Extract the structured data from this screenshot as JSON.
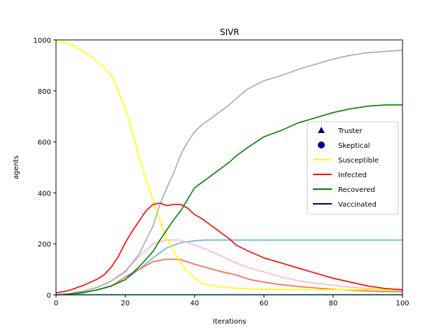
{
  "chart_data": {
    "type": "line",
    "title": "SIVR",
    "xlabel": "iterations",
    "ylabel": "agents",
    "xlim": [
      0,
      100
    ],
    "ylim": [
      0,
      1000
    ],
    "xticks": [
      0,
      20,
      40,
      60,
      80,
      100
    ],
    "yticks": [
      0,
      200,
      400,
      600,
      800,
      1000
    ],
    "grid": false,
    "legend_position": "center-right",
    "legend": [
      {
        "label": "Truster",
        "marker": "triangle",
        "color": "#000080"
      },
      {
        "label": "Skeptical",
        "marker": "circle",
        "color": "#000080"
      },
      {
        "label": "Susceptible",
        "marker": "line",
        "color": "#ffff00"
      },
      {
        "label": "Infected",
        "marker": "line",
        "color": "#ff0000"
      },
      {
        "label": "Recovered",
        "marker": "line",
        "color": "#008000"
      },
      {
        "label": "Vaccinated",
        "marker": "line",
        "color": "#000080"
      }
    ],
    "series": [
      {
        "name": "Susceptible",
        "color": "#ffff00",
        "x": [
          0,
          2,
          4,
          6,
          8,
          10,
          12,
          14,
          16,
          18,
          20,
          22,
          24,
          26,
          28,
          30,
          32,
          34,
          36,
          38,
          40,
          42,
          44,
          46,
          48,
          50,
          55,
          60,
          65,
          70,
          75,
          80,
          85,
          90,
          95,
          100
        ],
        "y": [
          995,
          990,
          985,
          970,
          955,
          935,
          915,
          890,
          860,
          800,
          730,
          640,
          540,
          450,
          370,
          290,
          220,
          170,
          125,
          90,
          65,
          45,
          40,
          35,
          30,
          28,
          24,
          22,
          21,
          20,
          20,
          20,
          20,
          20,
          20,
          20
        ]
      },
      {
        "name": "Infected",
        "color": "#ff0000",
        "x": [
          0,
          2,
          4,
          6,
          8,
          10,
          12,
          14,
          16,
          18,
          20,
          22,
          24,
          26,
          28,
          30,
          32,
          34,
          36,
          38,
          40,
          42,
          44,
          46,
          48,
          50,
          52,
          55,
          60,
          65,
          70,
          75,
          80,
          85,
          90,
          95,
          100
        ],
        "y": [
          8,
          12,
          18,
          28,
          38,
          50,
          62,
          80,
          110,
          150,
          205,
          250,
          290,
          330,
          355,
          360,
          350,
          355,
          355,
          340,
          315,
          300,
          280,
          260,
          240,
          220,
          195,
          175,
          145,
          125,
          105,
          85,
          65,
          50,
          35,
          25,
          20
        ]
      },
      {
        "name": "Recovered",
        "color": "#008000",
        "x": [
          0,
          4,
          8,
          12,
          16,
          20,
          22,
          24,
          26,
          28,
          30,
          32,
          34,
          36,
          38,
          40,
          42,
          44,
          46,
          48,
          50,
          52,
          55,
          60,
          65,
          70,
          75,
          80,
          85,
          90,
          95,
          100
        ],
        "y": [
          0,
          3,
          10,
          20,
          35,
          60,
          85,
          110,
          140,
          170,
          215,
          255,
          295,
          330,
          375,
          420,
          440,
          460,
          480,
          500,
          520,
          545,
          575,
          620,
          645,
          675,
          695,
          715,
          730,
          740,
          745,
          745
        ]
      },
      {
        "name": "Truster",
        "color": "#ffb6c1",
        "x": [
          0,
          4,
          8,
          12,
          16,
          20,
          24,
          28,
          32,
          36,
          40,
          44,
          48,
          52,
          56,
          60,
          65,
          70,
          75,
          80,
          85,
          90,
          95,
          100
        ],
        "y": [
          0,
          6,
          15,
          30,
          55,
          95,
          150,
          200,
          215,
          215,
          195,
          175,
          150,
          125,
          105,
          90,
          70,
          55,
          45,
          38,
          30,
          25,
          20,
          18
        ]
      },
      {
        "name": "Skeptical",
        "color": "#ff6347",
        "x": [
          0,
          4,
          8,
          12,
          16,
          20,
          24,
          28,
          32,
          36,
          40,
          44,
          48,
          52,
          56,
          60,
          65,
          70,
          75,
          80,
          85,
          90,
          95,
          100
        ],
        "y": [
          0,
          4,
          10,
          20,
          35,
          70,
          100,
          130,
          140,
          138,
          120,
          105,
          90,
          78,
          60,
          50,
          40,
          33,
          27,
          22,
          18,
          15,
          13,
          12
        ]
      },
      {
        "name": "Vaccinated",
        "color": "#5ab4e0",
        "x": [
          0,
          4,
          8,
          12,
          16,
          20,
          24,
          28,
          32,
          36,
          40,
          43,
          50,
          60,
          70,
          80,
          90,
          100
        ],
        "y": [
          0,
          3,
          8,
          20,
          35,
          60,
          100,
          145,
          185,
          205,
          212,
          215,
          215,
          215,
          215,
          215,
          215,
          215
        ]
      },
      {
        "name": "Total",
        "color": "#a9a9a9",
        "x": [
          0,
          4,
          8,
          12,
          16,
          20,
          24,
          28,
          30,
          32,
          34,
          36,
          38,
          40,
          42,
          44,
          46,
          48,
          50,
          52,
          55,
          60,
          65,
          70,
          75,
          80,
          85,
          90,
          95,
          100
        ],
        "y": [
          0,
          5,
          15,
          30,
          55,
          90,
          160,
          270,
          355,
          420,
          480,
          550,
          600,
          640,
          665,
          685,
          705,
          725,
          745,
          770,
          805,
          840,
          860,
          885,
          905,
          925,
          940,
          950,
          955,
          960
        ]
      },
      {
        "name": "Baseline",
        "color": "#20b2aa",
        "x": [
          0,
          100
        ],
        "y": [
          1,
          1
        ]
      }
    ]
  }
}
